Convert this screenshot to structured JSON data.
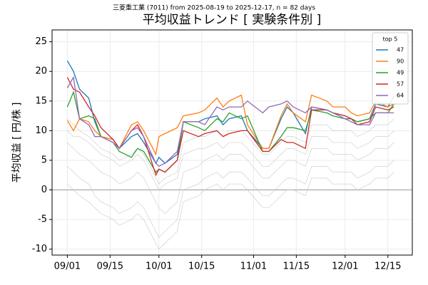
{
  "chart_data": {
    "type": "line",
    "suptitle": "三菱重工業 (7011) from 2025-08-19 to 2025-12-17, n = 82 days",
    "title": "平均収益トレンド [ 実験条件別 ]",
    "ylabel": "平均収益 [ 円/株 ]",
    "legend_title": "top 5",
    "legend": "upper right",
    "grid": true,
    "x": [
      "09/01",
      "09/03",
      "09/05",
      "09/08",
      "09/10",
      "09/12",
      "09/16",
      "09/18",
      "09/22",
      "09/24",
      "09/26",
      "09/30",
      "10/01",
      "10/03",
      "10/07",
      "10/09",
      "10/14",
      "10/16",
      "10/20",
      "10/22",
      "10/24",
      "10/28",
      "10/30",
      "11/04",
      "11/06",
      "11/10",
      "11/12",
      "11/14",
      "11/18",
      "11/20",
      "11/25",
      "11/27",
      "12/01",
      "12/03",
      "12/05",
      "12/09",
      "12/11",
      "12/15",
      "12/17"
    ],
    "xlim": [
      "08/27",
      "12/23"
    ],
    "xticks": [
      "09/01",
      "09/15",
      "10/01",
      "10/15",
      "11/01",
      "11/15",
      "12/01",
      "12/15"
    ],
    "ylim": [
      -11,
      27
    ],
    "yticks": [
      -10,
      -5,
      0,
      5,
      10,
      15,
      20,
      25
    ],
    "series": [
      {
        "color": "#c8c8c8",
        "values": [
          8,
          7,
          6,
          5,
          4,
          3,
          2,
          1,
          2,
          3,
          2,
          -2,
          -3,
          -4,
          -2,
          3,
          4,
          5,
          6,
          5,
          6,
          6,
          5,
          2,
          2,
          4,
          5,
          5,
          4,
          7,
          7,
          6,
          6,
          6,
          5,
          6,
          7,
          7,
          8
        ]
      },
      {
        "color": "#c8c8c8",
        "values": [
          4,
          3,
          2,
          1,
          -1,
          -2,
          -3,
          -4,
          -3,
          -2,
          -3,
          -7,
          -8,
          -7,
          -5,
          0,
          1,
          2,
          3,
          2,
          3,
          3,
          2,
          -1,
          -1,
          1,
          2,
          2,
          1,
          4,
          4,
          3,
          3,
          3,
          2,
          3,
          4,
          4,
          5
        ]
      },
      {
        "color": "#c8c8c8",
        "values": [
          12,
          11,
          10,
          9,
          8,
          7,
          6,
          5,
          6,
          7,
          6,
          2,
          1,
          2,
          3,
          8,
          9,
          9,
          10,
          9,
          10,
          10,
          9,
          6,
          6,
          8,
          9,
          9,
          8,
          11,
          11,
          10,
          10,
          10,
          9,
          10,
          11,
          11,
          12
        ]
      },
      {
        "color": "#c8c8c8",
        "values": [
          1,
          0,
          -1,
          -2,
          -3,
          -4,
          -5,
          -6,
          -5,
          -4,
          -5,
          -9,
          -10,
          -9,
          -7,
          -2,
          -1,
          0,
          1,
          0,
          1,
          1,
          0,
          -3,
          -3,
          -1,
          0,
          0,
          -1,
          2,
          2,
          1,
          1,
          1,
          0,
          1,
          2,
          2,
          3
        ]
      },
      {
        "color": "#c8c8c8",
        "values": [
          10,
          9,
          9,
          8,
          7,
          6,
          5,
          4,
          5,
          6,
          5,
          1,
          0,
          1,
          2,
          6,
          7,
          7,
          8,
          7,
          8,
          8,
          7,
          4,
          4,
          6,
          7,
          7,
          6,
          9,
          9,
          8,
          8,
          8,
          7,
          8,
          9,
          9,
          10
        ]
      },
      {
        "name": "47",
        "color": "#1f77b4",
        "values": [
          21.8,
          20,
          17,
          15.5,
          11.5,
          9,
          8.5,
          7,
          9,
          9.5,
          8,
          4.5,
          5.5,
          4.5,
          6,
          11.5,
          11.5,
          12,
          12.5,
          11,
          12,
          12.5,
          10,
          7,
          7,
          12,
          14,
          13,
          9.5,
          14,
          13.5,
          13,
          12.5,
          12,
          11.5,
          12,
          14.5,
          14,
          15.8
        ]
      },
      {
        "name": "90",
        "color": "#ff7f0e",
        "values": [
          11.7,
          10,
          12,
          11.5,
          10,
          9,
          8.5,
          7,
          11,
          11.5,
          10,
          6,
          9,
          9.5,
          10.5,
          12.5,
          13,
          13.5,
          15.5,
          14,
          15,
          16,
          11,
          7,
          7,
          12.5,
          14.5,
          13,
          11.5,
          16,
          15,
          14,
          14,
          13,
          12.5,
          13,
          15,
          14,
          14.5
        ]
      },
      {
        "name": "49",
        "color": "#2ca02c",
        "values": [
          14,
          16.5,
          12,
          12.5,
          12,
          9,
          8,
          6.5,
          5.5,
          7,
          6.5,
          3,
          3.5,
          3,
          5,
          11.5,
          10.5,
          10,
          12,
          11.5,
          13,
          12,
          12.5,
          6.5,
          6.5,
          9,
          10.5,
          10.5,
          10,
          13.5,
          13,
          12.5,
          12,
          12,
          11.5,
          12,
          13,
          13,
          14.5
        ]
      },
      {
        "name": "57",
        "color": "#d62728",
        "values": [
          19,
          17,
          16.5,
          14,
          12.5,
          10.5,
          8.5,
          7,
          10,
          11,
          9,
          2.5,
          3.5,
          3,
          5,
          10,
          9,
          9.5,
          10,
          9,
          9.5,
          10,
          10,
          6.5,
          6.5,
          8.5,
          8,
          8,
          7,
          13.5,
          13.5,
          13,
          12.5,
          12,
          11,
          11.5,
          14,
          13.5,
          14
        ]
      },
      {
        "name": "64",
        "color": "#9467bd",
        "values": [
          17.2,
          19,
          12,
          11,
          9,
          9,
          8,
          7,
          10,
          10.5,
          9,
          4.5,
          4,
          4.5,
          6.5,
          11.5,
          11.5,
          11,
          14,
          13.5,
          14,
          14,
          15,
          13,
          14,
          14.5,
          15,
          14,
          13,
          14,
          13.5,
          13,
          12,
          11.5,
          11,
          11,
          13,
          13,
          13
        ]
      }
    ]
  }
}
